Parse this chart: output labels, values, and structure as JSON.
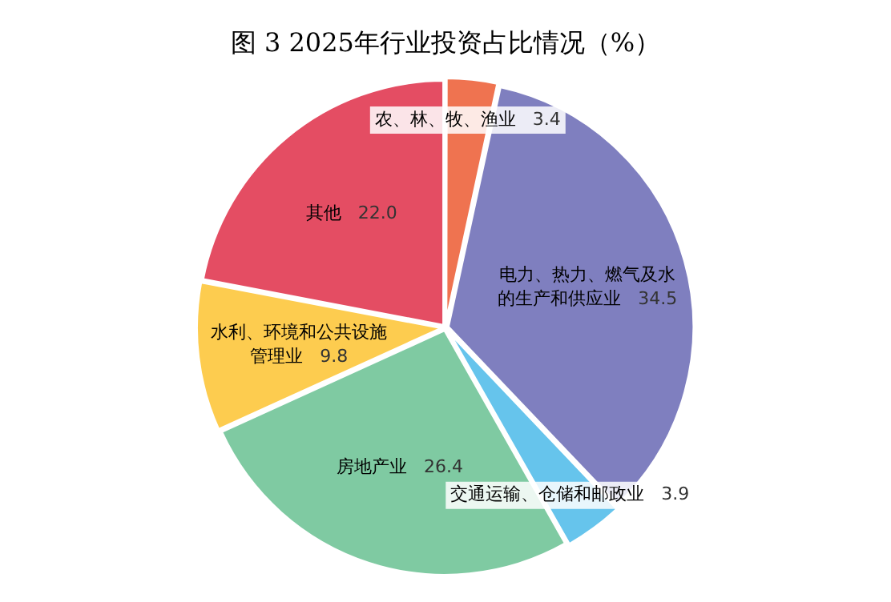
{
  "chart_data": {
    "type": "pie",
    "title": "图 3 2025年行业投资占比情况（%）",
    "categories": [
      "农、林、牧、渔业",
      "电力、热力、燃气及水的生产和供应业",
      "交通运输、仓储和邮政业",
      "房地产业",
      "水利、环境和公共设施管理业",
      "其他"
    ],
    "values": [
      3.4,
      34.5,
      3.9,
      26.4,
      9.8,
      22.0
    ],
    "colors": [
      "#ef7350",
      "#7f7fbf",
      "#66c4ec",
      "#7fcaa2",
      "#fdcc4f",
      "#e44d63"
    ],
    "value_labels": [
      "3.4",
      "34.5",
      "3.9",
      "26.4",
      "9.8",
      "22.0"
    ],
    "legend": false
  }
}
